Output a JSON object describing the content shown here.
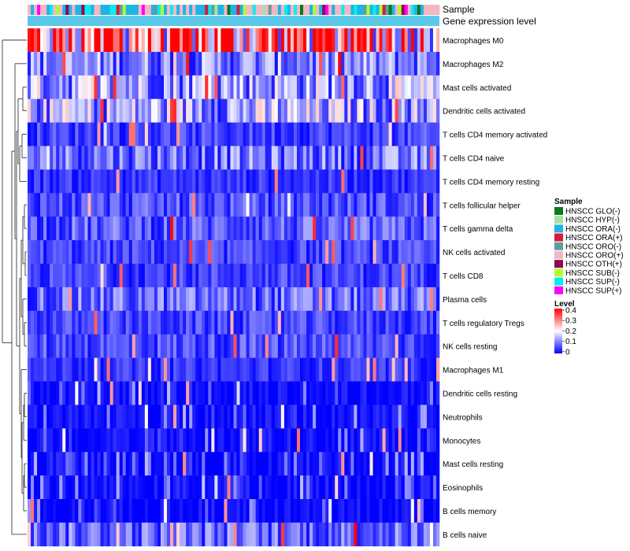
{
  "chart_data": {
    "type": "heatmap",
    "annotation_rows": [
      "Sample",
      "Gene expression level"
    ],
    "rows": [
      "Macrophages M0",
      "Macrophages M2",
      "Mast cells activated",
      "Dendritic cells activated",
      "T cells CD4 memory activated",
      "T cells CD4 naive",
      "T cells CD4 memory resting",
      "T cells follicular helper",
      "T cells gamma delta",
      "NK cells activated",
      "T cells CD8",
      "Plasma cells",
      "T cells regulatory  Tregs",
      "NK cells resting",
      "Macrophages M1",
      "Dendritic cells resting",
      "Neutrophils",
      "Monocytes",
      "Mast cells resting",
      "Eosinophils",
      "B cells memory",
      "B cells naive"
    ],
    "row_mean_level": [
      0.3,
      0.1,
      0.13,
      0.13,
      0.05,
      0.09,
      0.04,
      0.06,
      0.07,
      0.05,
      0.05,
      0.08,
      0.05,
      0.06,
      0.04,
      0.01,
      0.01,
      0.01,
      0.01,
      0.01,
      0.005,
      0.08
    ],
    "n_samples": 130,
    "expression_level_color": "#5bc8e8",
    "sample_legend": {
      "title": "Sample",
      "items": [
        {
          "label": "HNSCC GLO(-)",
          "color": "#0b7a1a"
        },
        {
          "label": "HNSCC HYP(-)",
          "color": "#a8e0a8"
        },
        {
          "label": "HNSCC ORA(-)",
          "color": "#1eb4e6"
        },
        {
          "label": "HNSCC ORA(+)",
          "color": "#d81b3c"
        },
        {
          "label": "HNSCC ORO(-)",
          "color": "#5f9ea0"
        },
        {
          "label": "HNSCC ORO(+)",
          "color": "#f4b6c2"
        },
        {
          "label": "HNSCC OTH(+)",
          "color": "#8b0a50"
        },
        {
          "label": "HNSCC SUB(-)",
          "color": "#adff2f"
        },
        {
          "label": "HNSCC SUP(-)",
          "color": "#00f0f0"
        },
        {
          "label": "HNSCC SUP(+)",
          "color": "#ff00ff"
        }
      ],
      "sample_weights": [
        2,
        2,
        40,
        2,
        3,
        35,
        2,
        5,
        14,
        3
      ]
    },
    "level_legend": {
      "title": "Level",
      "ticks": [
        "0.4",
        "0.3",
        "0.2",
        "0.1",
        "0"
      ],
      "range": [
        0,
        0.4
      ],
      "colors": [
        "#0000ff",
        "#ffffff",
        "#ff0000"
      ]
    }
  }
}
